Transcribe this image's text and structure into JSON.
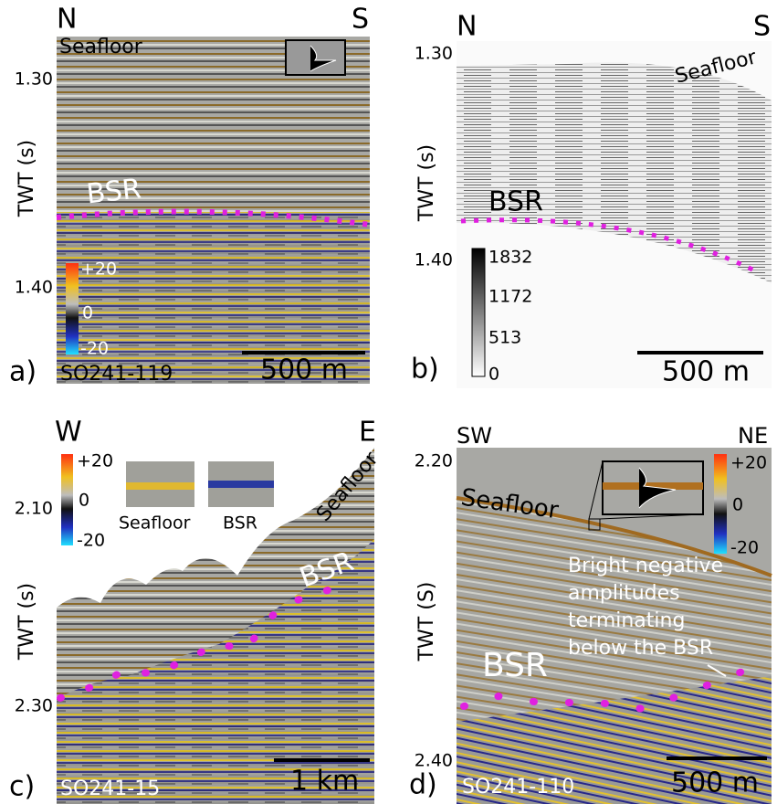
{
  "panels": [
    {
      "letter": "a)",
      "left": "N",
      "right": "S",
      "axis_label": "TWT (s)",
      "ticks": [
        "1.30",
        "1.40"
      ],
      "labels": [
        "Seafloor",
        "BSR"
      ],
      "colorbar": [
        "+20",
        "0",
        "-20"
      ],
      "scale": "500 m",
      "line_id": "SO241-119"
    },
    {
      "letter": "b)",
      "left": "N",
      "right": "S",
      "axis_label": "TWT (s)",
      "ticks": [
        "1.30",
        "1.40"
      ],
      "labels": [
        "Seafloor",
        "BSR"
      ],
      "colorbar": [
        "1832",
        "1172",
        "513",
        "0"
      ],
      "scale": "500 m"
    },
    {
      "letter": "c)",
      "left": "W",
      "right": "E",
      "axis_label": "TWT (s)",
      "ticks": [
        "2.10",
        "2.30"
      ],
      "labels": [
        "Seafloor",
        "BSR"
      ],
      "colorbar": [
        "+20",
        "0",
        "-20"
      ],
      "insets": [
        "Seafloor",
        "BSR"
      ],
      "scale": "1 km",
      "line_id": "SO241-15"
    },
    {
      "letter": "d)",
      "left": "SW",
      "right": "NE",
      "axis_label": "TWT (S)",
      "ticks": [
        "2.20",
        "2.40"
      ],
      "labels": [
        "Seafloor",
        "BSR"
      ],
      "annotation": [
        "Bright negative",
        "amplitudes",
        "terminating",
        "below the BSR"
      ],
      "colorbar": [
        "+20",
        "0",
        "-20"
      ],
      "scale": "500 m",
      "line_id": "SO241-110"
    }
  ]
}
